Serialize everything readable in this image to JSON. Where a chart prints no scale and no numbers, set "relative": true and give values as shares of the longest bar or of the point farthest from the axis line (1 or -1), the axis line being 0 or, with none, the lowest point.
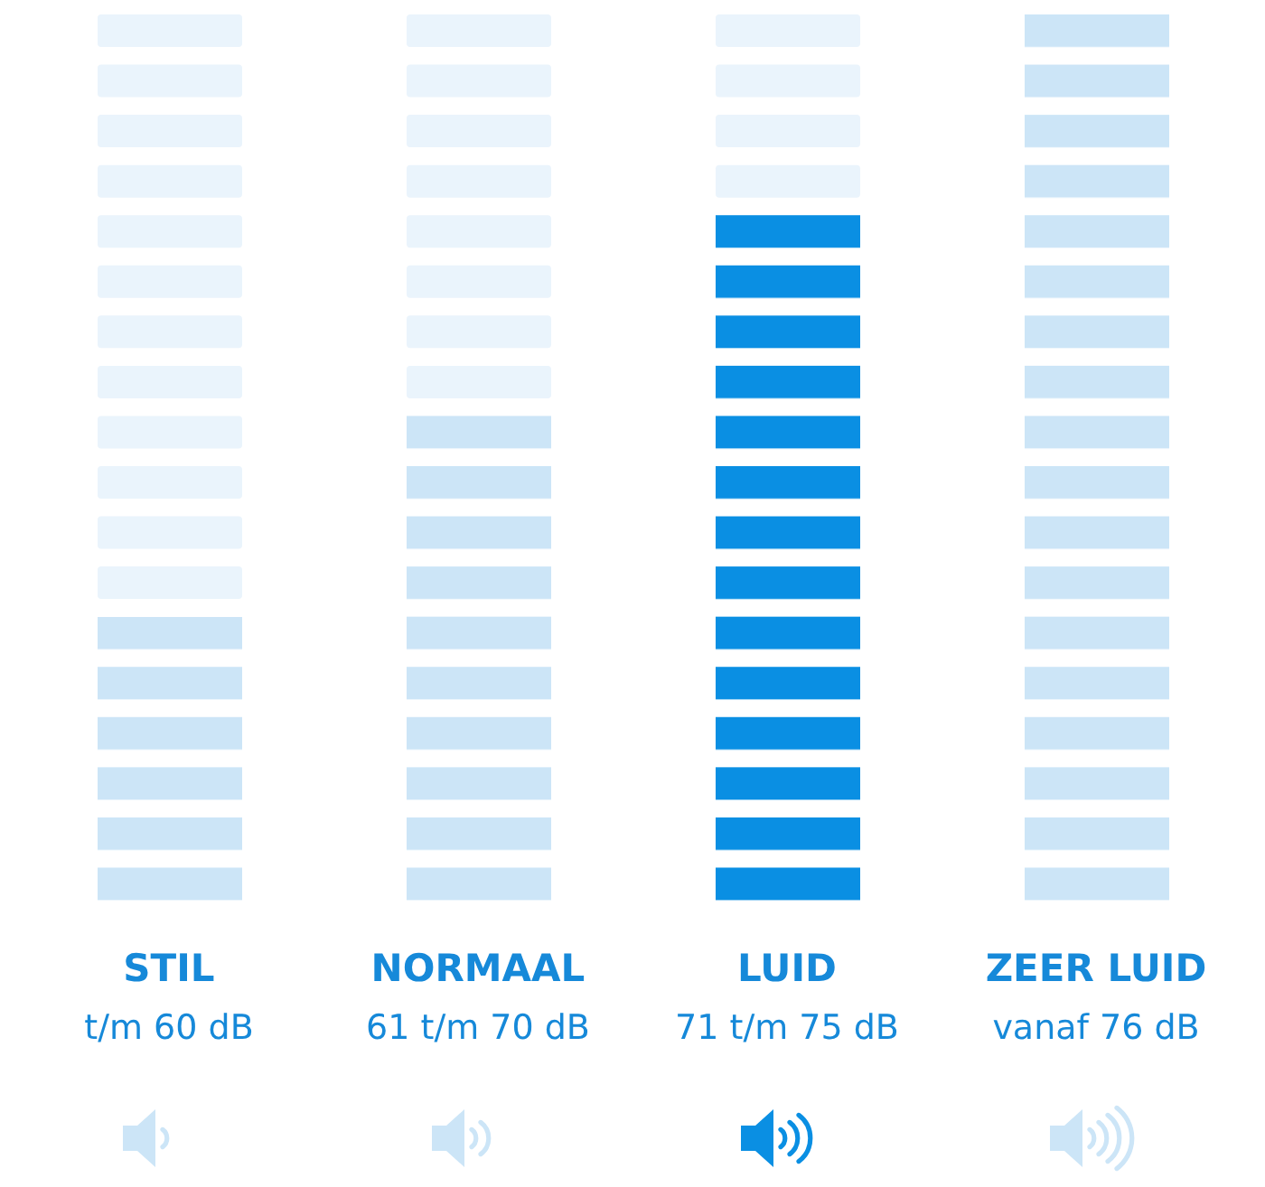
{
  "chart_data": {
    "type": "bar",
    "relative": true,
    "categories": [
      "STIL",
      "NORMAAL",
      "LUID",
      "ZEER LUID"
    ],
    "values": [
      0.333,
      0.556,
      0.778,
      1
    ],
    "colors": [
      "#cce5f7",
      "#cce5f7",
      "#0a8fe3",
      "#cce5f7"
    ],
    "annotations": [
      "t/m 60 dB",
      "61 t/m 70 dB",
      "71 t/m 75 dB",
      "vanaf 76 dB"
    ]
  }
}
